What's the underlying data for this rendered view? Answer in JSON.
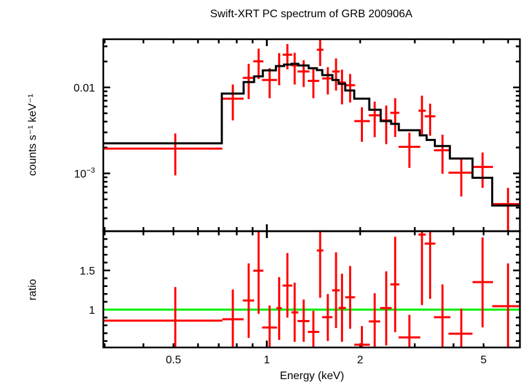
{
  "chart_data": [
    {
      "panel": "spectrum",
      "type": "scatter",
      "title": "Swift-XRT PC spectrum of GRB 200906A",
      "ylabel": "counts s⁻¹ keV⁻¹",
      "xscale": "log",
      "yscale": "log",
      "xlim": [
        0.297,
        6.55
      ],
      "ylim": [
        0.000213,
        0.0363
      ],
      "yticks": [
        {
          "value": 0.01,
          "label": "0.01"
        },
        {
          "value": 0.001,
          "label": "10",
          "sup": "−3"
        }
      ],
      "grid": false,
      "colors": {
        "data": "#ff0000",
        "model": "#000000"
      },
      "series": [
        {
          "kind": "data-with-errors",
          "points": [
            {
              "e": 0.507,
              "elo": 0.296,
              "ehi": 0.719,
              "y": 0.00194,
              "ylo": 0.00095,
              "yhi": 0.00291
            },
            {
              "e": 0.777,
              "elo": 0.719,
              "ehi": 0.842,
              "y": 0.0074,
              "ylo": 0.00413,
              "yhi": 0.0108
            },
            {
              "e": 0.874,
              "elo": 0.837,
              "ehi": 0.91,
              "y": 0.0129,
              "ylo": 0.00731,
              "yhi": 0.0188
            },
            {
              "e": 0.941,
              "elo": 0.904,
              "ehi": 0.975,
              "y": 0.0201,
              "ylo": 0.0125,
              "yhi": 0.0282
            },
            {
              "e": 1.021,
              "elo": 0.965,
              "ehi": 1.079,
              "y": 0.0122,
              "ylo": 0.00749,
              "yhi": 0.0167
            },
            {
              "e": 1.096,
              "elo": 1.074,
              "ehi": 1.118,
              "y": 0.0177,
              "ylo": 0.0106,
              "yhi": 0.025
            },
            {
              "e": 1.165,
              "elo": 1.125,
              "ehi": 1.208,
              "y": 0.024,
              "ylo": 0.0162,
              "yhi": 0.0319
            },
            {
              "e": 1.23,
              "elo": 1.201,
              "ehi": 1.264,
              "y": 0.018,
              "ylo": 0.0108,
              "yhi": 0.0253
            },
            {
              "e": 1.315,
              "elo": 1.256,
              "ehi": 1.373,
              "y": 0.0153,
              "ylo": 0.0101,
              "yhi": 0.0207
            },
            {
              "e": 1.413,
              "elo": 1.356,
              "ehi": 1.476,
              "y": 0.0119,
              "ylo": 0.00749,
              "yhi": 0.0164
            },
            {
              "e": 1.486,
              "elo": 1.45,
              "ehi": 1.522,
              "y": 0.0274,
              "ylo": 0.0177,
              "yhi": 0.0377
            },
            {
              "e": 1.573,
              "elo": 1.508,
              "ehi": 1.628,
              "y": 0.0127,
              "ylo": 0.00827,
              "yhi": 0.0172
            },
            {
              "e": 1.672,
              "elo": 1.624,
              "ehi": 1.72,
              "y": 0.0153,
              "ylo": 0.00918,
              "yhi": 0.0217
            },
            {
              "e": 1.748,
              "elo": 1.705,
              "ehi": 1.798,
              "y": 0.0114,
              "ylo": 0.00635,
              "yhi": 0.0161
            },
            {
              "e": 1.857,
              "elo": 1.79,
              "ehi": 1.926,
              "y": 0.0106,
              "ylo": 0.00667,
              "yhi": 0.0143
            },
            {
              "e": 2.026,
              "elo": 1.914,
              "ehi": 2.149,
              "y": 0.00406,
              "ylo": 0.00233,
              "yhi": 0.00586
            },
            {
              "e": 2.228,
              "elo": 2.132,
              "ehi": 2.321,
              "y": 0.00473,
              "ylo": 0.00264,
              "yhi": 0.00684
            },
            {
              "e": 2.427,
              "elo": 2.321,
              "ehi": 2.527,
              "y": 0.00413,
              "ylo": 0.00219,
              "yhi": 0.00615
            },
            {
              "e": 2.594,
              "elo": 2.501,
              "ehi": 2.675,
              "y": 0.00506,
              "ylo": 0.00265,
              "yhi": 0.00749
            },
            {
              "e": 2.883,
              "elo": 2.659,
              "ehi": 3.126,
              "y": 0.00204,
              "ylo": 0.00116,
              "yhi": 0.00298
            },
            {
              "e": 3.165,
              "elo": 3.083,
              "ehi": 3.256,
              "y": 0.00535,
              "ylo": 0.00286,
              "yhi": 0.00802
            },
            {
              "e": 3.363,
              "elo": 3.229,
              "ehi": 3.496,
              "y": 0.00461,
              "ylo": 0.00274,
              "yhi": 0.00647
            },
            {
              "e": 3.686,
              "elo": 3.46,
              "ehi": 3.908,
              "y": 0.00186,
              "ylo": 0.00099,
              "yhi": 0.00282
            },
            {
              "e": 4.238,
              "elo": 3.853,
              "ehi": 4.606,
              "y": 0.00102,
              "ylo": 0.00054,
              "yhi": 0.00146
            },
            {
              "e": 4.964,
              "elo": 4.606,
              "ehi": 5.363,
              "y": 0.00119,
              "ylo": 0.00068,
              "yhi": 0.00175
            },
            {
              "e": 5.996,
              "elo": 5.331,
              "ehi": 6.55,
              "y": 0.00044,
              "ylo": 0.0001,
              "yhi": 0.00068
            }
          ]
        },
        {
          "kind": "model-step",
          "edges": [
            0.296,
            0.716,
            0.842,
            0.91,
            0.971,
            1.07,
            1.137,
            1.201,
            1.264,
            1.364,
            1.45,
            1.51,
            1.628,
            1.705,
            1.79,
            1.914,
            2.14,
            2.33,
            2.517,
            2.665,
            3.113,
            3.276,
            3.482,
            3.893,
            4.606,
            5.331,
            6.55
          ],
          "values": [
            0.00224,
            0.00847,
            0.01153,
            0.01343,
            0.01578,
            0.0177,
            0.0184,
            0.0188,
            0.018,
            0.0167,
            0.0159,
            0.0139,
            0.0122,
            0.011,
            0.0092,
            0.0074,
            0.0055,
            0.00406,
            0.00377,
            0.00318,
            0.00277,
            0.00245,
            0.00208,
            0.00149,
            0.00089,
            0.000423
          ]
        }
      ]
    },
    {
      "panel": "ratio",
      "type": "scatter",
      "xlabel": "Energy (keV)",
      "ylabel": "ratio",
      "xscale": "log",
      "yscale": "linear",
      "xlim": [
        0.297,
        6.55
      ],
      "ylim": [
        0.518,
        2.0
      ],
      "xticks": [
        {
          "value": 0.5,
          "label": "0.5"
        },
        {
          "value": 1,
          "label": "1"
        },
        {
          "value": 2,
          "label": "2"
        },
        {
          "value": 5,
          "label": "5"
        }
      ],
      "yticks": [
        {
          "value": 1.5,
          "label": "1.5"
        },
        {
          "value": 1,
          "label": "1"
        }
      ],
      "reference_line": 1,
      "colors": {
        "data": "#ff0000",
        "reference": "#00ee00"
      },
      "points": [
        {
          "r": 0.86,
          "rlo": 0.4,
          "rhi": 1.287
        },
        {
          "r": 0.877,
          "rlo": 0.4,
          "rhi": 1.257
        },
        {
          "r": 1.117,
          "rlo": 0.64,
          "rhi": 1.59
        },
        {
          "r": 1.497,
          "rlo": 0.947,
          "rhi": 2.1
        },
        {
          "r": 0.772,
          "rlo": 0.4,
          "rhi": 1.053
        },
        {
          "r": 1.02,
          "rlo": 0.614,
          "rhi": 1.415
        },
        {
          "r": 1.307,
          "rlo": 0.898,
          "rhi": 1.722
        },
        {
          "r": 0.965,
          "rlo": 0.59,
          "rhi": 1.345
        },
        {
          "r": 0.854,
          "rlo": 0.59,
          "rhi": 1.129
        },
        {
          "r": 0.716,
          "rlo": 0.4,
          "rhi": 0.985
        },
        {
          "r": 1.754,
          "rlo": 1.152,
          "rhi": 2.1
        },
        {
          "r": 0.904,
          "rlo": 0.6,
          "rhi": 1.199
        },
        {
          "r": 1.246,
          "rlo": 0.766,
          "rhi": 1.73
        },
        {
          "r": 1.023,
          "rlo": 0.59,
          "rhi": 1.459
        },
        {
          "r": 1.158,
          "rlo": 0.757,
          "rhi": 1.556
        },
        {
          "r": 0.553,
          "rlo": 0.4,
          "rhi": 0.79
        },
        {
          "r": 0.85,
          "rlo": 0.4,
          "rhi": 1.21
        },
        {
          "r": 1.02,
          "rlo": 0.544,
          "rhi": 1.488
        },
        {
          "r": 1.322,
          "rlo": 0.713,
          "rhi": 1.93
        },
        {
          "r": 0.646,
          "rlo": 0.4,
          "rhi": 0.933
        },
        {
          "r": 1.956,
          "rlo": 1.058,
          "rhi": 2.1
        },
        {
          "r": 1.842,
          "rlo": 1.137,
          "rhi": 2.1
        },
        {
          "r": 0.904,
          "rlo": 0.4,
          "rhi": 1.322
        },
        {
          "r": 0.693,
          "rlo": 0.4,
          "rhi": 1.015
        },
        {
          "r": 1.351,
          "rlo": 0.775,
          "rhi": 1.92
        },
        {
          "r": 1.044,
          "rlo": 0.4,
          "rhi": 1.59
        }
      ]
    }
  ]
}
